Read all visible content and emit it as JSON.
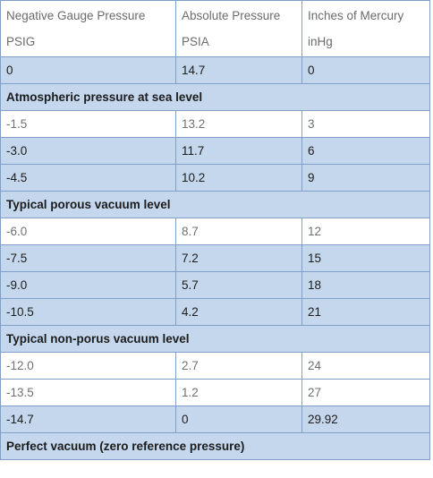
{
  "headers": [
    {
      "line1": "Negative Gauge Pressure",
      "line2": "PSIG"
    },
    {
      "line1": "Absolute Pressure",
      "line2": "PSIA"
    },
    {
      "line1": "Inches of Mercury",
      "line2": "inHg"
    }
  ],
  "rows": [
    {
      "kind": "data",
      "shade": "blue",
      "cells": [
        "0",
        "14.7",
        "0"
      ]
    },
    {
      "kind": "section",
      "shade": "blue",
      "label": "Atmospheric pressure at sea level"
    },
    {
      "kind": "data",
      "shade": "white",
      "cells": [
        "-1.5",
        "13.2",
        "3"
      ]
    },
    {
      "kind": "data",
      "shade": "blue",
      "cells": [
        "-3.0",
        "11.7",
        "6"
      ]
    },
    {
      "kind": "data",
      "shade": "blue",
      "cells": [
        "-4.5",
        "10.2",
        "9"
      ]
    },
    {
      "kind": "section",
      "shade": "blue",
      "label": "Typical porous vacuum level"
    },
    {
      "kind": "data",
      "shade": "white",
      "cells": [
        "-6.0",
        "8.7",
        "12"
      ]
    },
    {
      "kind": "data",
      "shade": "blue",
      "cells": [
        "-7.5",
        "7.2",
        "15"
      ]
    },
    {
      "kind": "data",
      "shade": "blue",
      "cells": [
        "-9.0",
        "5.7",
        "18"
      ]
    },
    {
      "kind": "data",
      "shade": "blue",
      "cells": [
        "-10.5",
        "4.2",
        "21"
      ]
    },
    {
      "kind": "section",
      "shade": "blue",
      "label": "Typical non-porus vacuum level"
    },
    {
      "kind": "data",
      "shade": "white",
      "cells": [
        "-12.0",
        "2.7",
        "24"
      ]
    },
    {
      "kind": "data",
      "shade": "white",
      "cells": [
        "-13.5",
        "1.2",
        "27"
      ]
    },
    {
      "kind": "data",
      "shade": "blue",
      "cells": [
        "-14.7",
        "0",
        "29.92"
      ]
    },
    {
      "kind": "section",
      "shade": "blue",
      "label": "Perfect vacuum (zero reference pressure)"
    }
  ],
  "colors": {
    "row_blue": "#c5d7ed",
    "border": "#7f9fc7",
    "muted_text": "#707070"
  }
}
